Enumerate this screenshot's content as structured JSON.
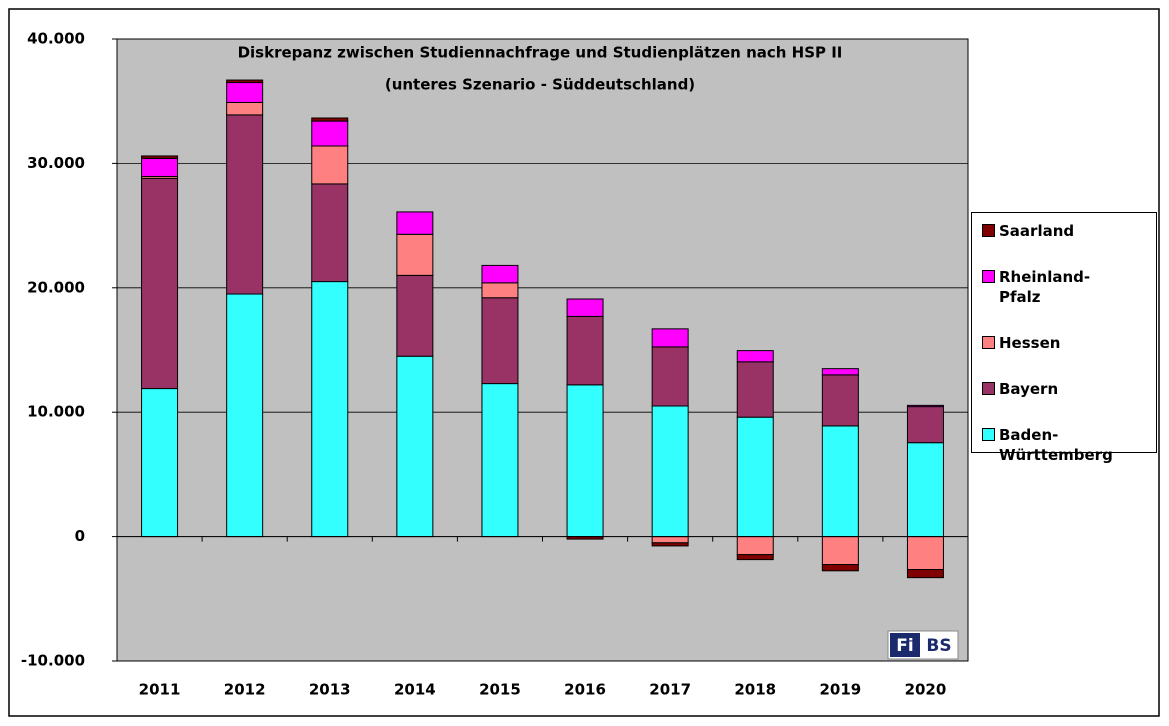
{
  "chart_data": {
    "type": "bar",
    "stacked": true,
    "title": "Diskrepanz zwischen Studiennachfrage und Studienplätzen nach HSP II",
    "subtitle": "(unteres Szenario - Süddeutschland)",
    "categories": [
      "2011",
      "2012",
      "2013",
      "2014",
      "2015",
      "2016",
      "2017",
      "2018",
      "2019",
      "2020"
    ],
    "series": [
      {
        "name": "Baden-Württemberg",
        "color": "#33ffff",
        "values": [
          11900,
          19500,
          20500,
          14500,
          12300,
          12200,
          10500,
          9600,
          8900,
          7550
        ]
      },
      {
        "name": "Bayern",
        "color": "#993366",
        "values": [
          16900,
          14400,
          7850,
          6500,
          6900,
          5500,
          4750,
          4450,
          4100,
          2900
        ]
      },
      {
        "name": "Hessen",
        "color": "#ff8080",
        "values": [
          150,
          1000,
          3050,
          3300,
          1200,
          0,
          -500,
          -1450,
          -2250,
          -2650
        ]
      },
      {
        "name": "Rheinland-Pfalz",
        "color": "#ff00ff",
        "values": [
          1450,
          1600,
          2000,
          1800,
          1400,
          1400,
          1450,
          900,
          500,
          100
        ]
      },
      {
        "name": "Saarland",
        "color": "#800000",
        "values": [
          200,
          200,
          250,
          0,
          0,
          -200,
          -250,
          -400,
          -500,
          -650
        ]
      }
    ],
    "ylim": [
      -10000,
      40000
    ],
    "yticks": [
      {
        "value": -10000,
        "label": "-10.000"
      },
      0,
      {
        "value": 10000,
        "label": "10.000"
      },
      {
        "value": 20000,
        "label": "20.000"
      },
      {
        "value": 30000,
        "label": "30.000"
      },
      {
        "value": 40000,
        "label": "40.000"
      }
    ],
    "grid": true,
    "background": "#c0c0c0",
    "legend": "right",
    "logo": {
      "left": "Fi",
      "right": "BS"
    }
  }
}
